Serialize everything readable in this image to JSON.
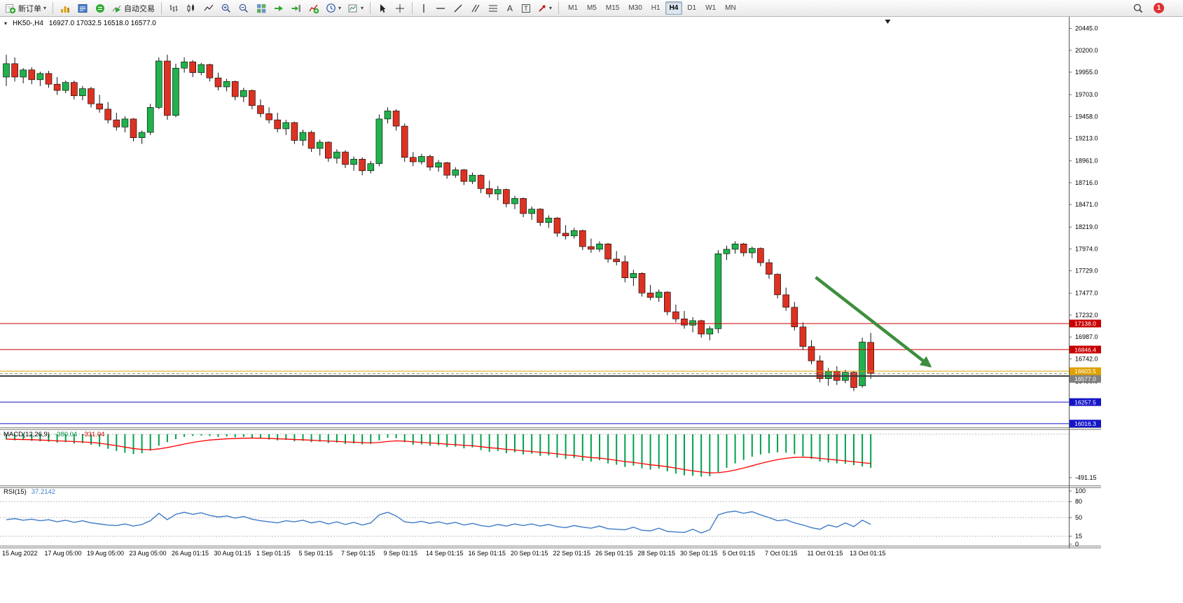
{
  "toolbar": {
    "new_order_label": "新订单",
    "autotrading_label": "自动交易",
    "timeframes": [
      "M1",
      "M5",
      "M15",
      "M30",
      "H1",
      "H4",
      "D1",
      "W1",
      "MN"
    ],
    "active_timeframe": "H4",
    "notification_count": "1"
  },
  "colors": {
    "candle_up": "#22b14c",
    "candle_down": "#dd3222",
    "wick": "#111111",
    "macd_histogram": "#00a14b",
    "macd_signal": "#ff0000",
    "rsi_line": "#3e7bc8",
    "level_red": "#c80000",
    "level_orange": "#e0a000",
    "level_blue": "#1414c8",
    "bid_gray": "#808080",
    "support_dark": "#3a3a3a",
    "arrow_green": "#3e8e3e"
  },
  "chart_data": [
    {
      "type": "candlestick",
      "title": "HK50-,H4",
      "symbol": "HK50-",
      "timeframe": "H4",
      "ohlc_text": "16927.0 17032.5 16518.0 16577.0",
      "last_ohlc": {
        "open": 16927.0,
        "high": 17032.5,
        "low": 16518.0,
        "close": 16577.0
      },
      "ylim": [
        15976,
        20575
      ],
      "y_ticks": [
        "20445.0",
        "20200.0",
        "19955.0",
        "19703.0",
        "19458.0",
        "19213.0",
        "18961.0",
        "18716.0",
        "18471.0",
        "18219.0",
        "17974.0",
        "17729.0",
        "17477.0",
        "17232.0",
        "16987.0",
        "16742.0",
        "16490.0"
      ],
      "x_labels": [
        "15 Aug 2022",
        "17 Aug 05:00",
        "19 Aug 05:00",
        "23 Aug 05:00",
        "26 Aug 01:15",
        "30 Aug 01:15",
        "1 Sep 01:15",
        "5 Sep 01:15",
        "7 Sep 01:15",
        "9 Sep 01:15",
        "14 Sep 01:15",
        "16 Sep 01:15",
        "20 Sep 01:15",
        "22 Sep 01:15",
        "26 Sep 01:15",
        "28 Sep 01:15",
        "30 Sep 01:15",
        "5 Oct 01:15",
        "7 Oct 01:15",
        "11 Oct 01:15",
        "13 Oct 01:15"
      ],
      "candles_per_label": 5,
      "candles": [
        [
          19900,
          20150,
          19800,
          20050
        ],
        [
          20050,
          20120,
          19850,
          19900
        ],
        [
          19900,
          20000,
          19830,
          19980
        ],
        [
          19980,
          20010,
          19820,
          19870
        ],
        [
          19870,
          19960,
          19800,
          19940
        ],
        [
          19940,
          19970,
          19780,
          19820
        ],
        [
          19820,
          19900,
          19700,
          19750
        ],
        [
          19750,
          19860,
          19720,
          19840
        ],
        [
          19840,
          19860,
          19650,
          19690
        ],
        [
          19690,
          19800,
          19640,
          19770
        ],
        [
          19770,
          19790,
          19560,
          19600
        ],
        [
          19600,
          19700,
          19500,
          19540
        ],
        [
          19540,
          19620,
          19380,
          19420
        ],
        [
          19420,
          19500,
          19300,
          19340
        ],
        [
          19340,
          19460,
          19280,
          19430
        ],
        [
          19430,
          19440,
          19180,
          19220
        ],
        [
          19220,
          19300,
          19150,
          19280
        ],
        [
          19280,
          19600,
          19250,
          19560
        ],
        [
          19560,
          20120,
          19540,
          20080
        ],
        [
          20080,
          20150,
          19420,
          19470
        ],
        [
          19470,
          20050,
          19450,
          20000
        ],
        [
          20000,
          20120,
          19950,
          20070
        ],
        [
          20070,
          20090,
          19900,
          19950
        ],
        [
          19950,
          20060,
          19920,
          20040
        ],
        [
          20040,
          20050,
          19850,
          19890
        ],
        [
          19890,
          19950,
          19750,
          19790
        ],
        [
          19790,
          19880,
          19740,
          19850
        ],
        [
          19850,
          19860,
          19640,
          19680
        ],
        [
          19680,
          19780,
          19620,
          19750
        ],
        [
          19750,
          19760,
          19540,
          19580
        ],
        [
          19580,
          19650,
          19450,
          19490
        ],
        [
          19490,
          19560,
          19380,
          19420
        ],
        [
          19420,
          19500,
          19280,
          19320
        ],
        [
          19320,
          19420,
          19250,
          19390
        ],
        [
          19390,
          19400,
          19150,
          19190
        ],
        [
          19190,
          19310,
          19130,
          19280
        ],
        [
          19280,
          19300,
          19060,
          19100
        ],
        [
          19100,
          19200,
          19020,
          19170
        ],
        [
          19170,
          19180,
          18950,
          18990
        ],
        [
          18990,
          19090,
          18930,
          19060
        ],
        [
          19060,
          19080,
          18880,
          18920
        ],
        [
          18920,
          19010,
          18850,
          18980
        ],
        [
          18980,
          19000,
          18800,
          18850
        ],
        [
          18850,
          18960,
          18820,
          18930
        ],
        [
          18930,
          19480,
          18900,
          19430
        ],
        [
          19430,
          19560,
          19380,
          19520
        ],
        [
          19520,
          19540,
          19300,
          19350
        ],
        [
          19350,
          19380,
          18950,
          19000
        ],
        [
          19000,
          19060,
          18900,
          18950
        ],
        [
          18950,
          19040,
          18920,
          19010
        ],
        [
          19010,
          19030,
          18850,
          18890
        ],
        [
          18890,
          18970,
          18840,
          18940
        ],
        [
          18940,
          18950,
          18760,
          18800
        ],
        [
          18800,
          18890,
          18770,
          18860
        ],
        [
          18860,
          18870,
          18690,
          18730
        ],
        [
          18730,
          18830,
          18700,
          18800
        ],
        [
          18800,
          18810,
          18600,
          18650
        ],
        [
          18650,
          18740,
          18550,
          18590
        ],
        [
          18590,
          18680,
          18520,
          18640
        ],
        [
          18640,
          18650,
          18440,
          18480
        ],
        [
          18480,
          18570,
          18420,
          18540
        ],
        [
          18540,
          18550,
          18330,
          18370
        ],
        [
          18370,
          18450,
          18300,
          18420
        ],
        [
          18420,
          18430,
          18230,
          18270
        ],
        [
          18270,
          18350,
          18210,
          18320
        ],
        [
          18320,
          18330,
          18110,
          18150
        ],
        [
          18150,
          18240,
          18080,
          18120
        ],
        [
          18120,
          18210,
          18090,
          18180
        ],
        [
          18180,
          18190,
          17960,
          18000
        ],
        [
          18000,
          18090,
          17930,
          17970
        ],
        [
          17970,
          18060,
          17940,
          18030
        ],
        [
          18030,
          18040,
          17820,
          17860
        ],
        [
          17860,
          17950,
          17790,
          17830
        ],
        [
          17830,
          17900,
          17600,
          17650
        ],
        [
          17650,
          17740,
          17560,
          17700
        ],
        [
          17700,
          17710,
          17440,
          17480
        ],
        [
          17480,
          17570,
          17400,
          17430
        ],
        [
          17430,
          17520,
          17380,
          17490
        ],
        [
          17490,
          17500,
          17230,
          17270
        ],
        [
          17270,
          17350,
          17150,
          17190
        ],
        [
          17190,
          17280,
          17080,
          17120
        ],
        [
          17120,
          17210,
          17040,
          17170
        ],
        [
          17170,
          17180,
          16980,
          17020
        ],
        [
          17020,
          17110,
          16950,
          17080
        ],
        [
          17080,
          17960,
          17030,
          17920
        ],
        [
          17920,
          18010,
          17850,
          17970
        ],
        [
          17970,
          18060,
          17920,
          18030
        ],
        [
          18030,
          18040,
          17890,
          17930
        ],
        [
          17930,
          18000,
          17870,
          17980
        ],
        [
          17980,
          17990,
          17780,
          17820
        ],
        [
          17820,
          17860,
          17640,
          17690
        ],
        [
          17690,
          17700,
          17420,
          17460
        ],
        [
          17460,
          17540,
          17280,
          17320
        ],
        [
          17320,
          17380,
          17060,
          17100
        ],
        [
          17100,
          17150,
          16840,
          16880
        ],
        [
          16880,
          16950,
          16680,
          16720
        ],
        [
          16720,
          16780,
          16480,
          16520
        ],
        [
          16520,
          16640,
          16440,
          16600
        ],
        [
          16600,
          16660,
          16450,
          16500
        ],
        [
          16500,
          16620,
          16470,
          16590
        ],
        [
          16590,
          16600,
          16380,
          16420
        ],
        [
          16440,
          16980,
          16420,
          16930
        ],
        [
          16927,
          17032.5,
          16518,
          16577
        ]
      ],
      "hlines": [
        {
          "price": 17138.0,
          "label": "17138.0",
          "color": "#c80000",
          "width": 1
        },
        {
          "price": 16846.4,
          "label": "16846.4",
          "color": "#c80000",
          "width": 1
        },
        {
          "price": 16603.5,
          "label": "16603.5",
          "color": "#e0a000",
          "width": 1
        },
        {
          "price": 16550.0,
          "label": null,
          "color": "#3a3a3a",
          "width": 2
        },
        {
          "price": 16257.5,
          "label": "16257.5",
          "color": "#1414c8",
          "width": 1
        },
        {
          "price": 16016.3,
          "label": "16016.3",
          "color": "#1414c8",
          "width": 1
        }
      ],
      "bid_line": {
        "price": 16577.0,
        "label": "16577.0",
        "color": "#808080"
      },
      "arrow": {
        "from_index": 95.5,
        "from_price": 17656,
        "to_index": 109,
        "to_price": 16660,
        "color": "#3e8e3e",
        "width": 4.5
      },
      "shift_marker_index": 104
    },
    {
      "type": "bar",
      "name": "MACD",
      "label_name": "MACD(12,26,9)",
      "value_main": "-380.04",
      "value_signal": "-331.04",
      "y_ticks": [
        "-491.15"
      ],
      "histogram": [
        -60,
        -70,
        -65,
        -75,
        -80,
        -85,
        -95,
        -90,
        -105,
        -100,
        -120,
        -140,
        -165,
        -190,
        -210,
        -225,
        -215,
        -185,
        -130,
        -90,
        -55,
        -30,
        -20,
        -15,
        -20,
        -30,
        -25,
        -35,
        -30,
        -40,
        -50,
        -60,
        -70,
        -65,
        -80,
        -75,
        -90,
        -85,
        -100,
        -95,
        -110,
        -105,
        -115,
        -110,
        -70,
        -40,
        -45,
        -90,
        -120,
        -115,
        -130,
        -125,
        -145,
        -140,
        -160,
        -150,
        -180,
        -200,
        -190,
        -215,
        -205,
        -230,
        -220,
        -245,
        -240,
        -265,
        -280,
        -270,
        -300,
        -310,
        -295,
        -330,
        -345,
        -370,
        -355,
        -385,
        -400,
        -390,
        -420,
        -445,
        -465,
        -470,
        -480,
        -475,
        -430,
        -380,
        -330,
        -290,
        -255,
        -230,
        -215,
        -205,
        -210,
        -225,
        -250,
        -280,
        -310,
        -320,
        -330,
        -335,
        -350,
        -365,
        -380.04
      ],
      "signal": [
        -55,
        -58,
        -60,
        -62,
        -66,
        -70,
        -75,
        -78,
        -83,
        -87,
        -93,
        -102,
        -115,
        -130,
        -146,
        -162,
        -172,
        -175,
        -166,
        -151,
        -132,
        -112,
        -93,
        -78,
        -66,
        -59,
        -52,
        -49,
        -45,
        -44,
        -45,
        -48,
        -52,
        -55,
        -60,
        -63,
        -68,
        -72,
        -77,
        -81,
        -87,
        -90,
        -95,
        -98,
        -93,
        -82,
        -75,
        -78,
        -86,
        -92,
        -99,
        -104,
        -113,
        -118,
        -126,
        -131,
        -141,
        -153,
        -160,
        -171,
        -178,
        -188,
        -195,
        -205,
        -212,
        -222,
        -234,
        -241,
        -253,
        -264,
        -270,
        -282,
        -295,
        -310,
        -319,
        -332,
        -346,
        -355,
        -368,
        -383,
        -400,
        -414,
        -427,
        -437,
        -435,
        -424,
        -405,
        -382,
        -357,
        -331,
        -308,
        -287,
        -272,
        -262,
        -260,
        -264,
        -273,
        -283,
        -292,
        -301,
        -311,
        -322,
        -331.04
      ]
    },
    {
      "type": "line",
      "name": "RSI",
      "label_name": "RSI(15)",
      "value_text": "37.2142",
      "levels": [
        80,
        50,
        15
      ],
      "y_ticks": [
        "100",
        "80",
        "50",
        "15",
        "0"
      ],
      "values": [
        46,
        48,
        45,
        47,
        44,
        46,
        42,
        45,
        41,
        44,
        40,
        38,
        36,
        35,
        38,
        34,
        37,
        44,
        58,
        46,
        56,
        60,
        56,
        59,
        54,
        51,
        53,
        49,
        52,
        47,
        44,
        42,
        40,
        44,
        42,
        45,
        40,
        43,
        38,
        42,
        37,
        41,
        36,
        40,
        55,
        60,
        53,
        42,
        40,
        43,
        39,
        42,
        38,
        41,
        36,
        39,
        35,
        33,
        37,
        34,
        38,
        35,
        38,
        34,
        37,
        33,
        31,
        35,
        32,
        30,
        34,
        29,
        28,
        27,
        32,
        26,
        25,
        30,
        24,
        23,
        22,
        28,
        21,
        27,
        55,
        60,
        62,
        58,
        61,
        55,
        50,
        44,
        46,
        40,
        36,
        31,
        28,
        36,
        32,
        40,
        33,
        45,
        37.21
      ]
    }
  ]
}
